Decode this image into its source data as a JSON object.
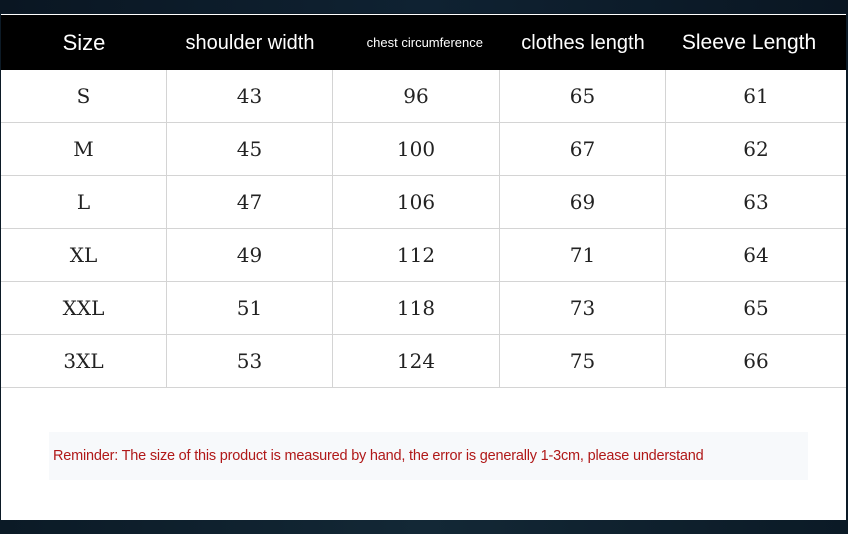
{
  "table": {
    "headers": [
      "Size",
      "shoulder width",
      "chest circumference",
      "clothes length",
      "Sleeve Length"
    ],
    "rows": [
      [
        "S",
        "43",
        "96",
        "65",
        "61"
      ],
      [
        "M",
        "45",
        "100",
        "67",
        "62"
      ],
      [
        "L",
        "47",
        "106",
        "69",
        "63"
      ],
      [
        "XL",
        "49",
        "112",
        "71",
        "64"
      ],
      [
        "XXL",
        "51",
        "118",
        "73",
        "65"
      ],
      [
        "3XL",
        "53",
        "124",
        "75",
        "66"
      ]
    ]
  },
  "reminder": "Reminder: The size of this product is measured by hand, the error is generally 1-3cm, please understand",
  "colors": {
    "header_bg": "#000000",
    "reminder_text": "#b01818"
  }
}
